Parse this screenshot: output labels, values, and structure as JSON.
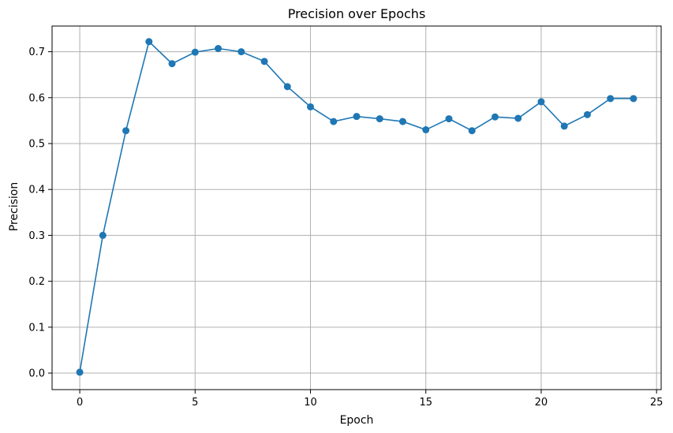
{
  "chart_data": {
    "type": "line",
    "title": "Precision over Epochs",
    "xlabel": "Epoch",
    "ylabel": "Precision",
    "xlim": [
      -1.2,
      25.2
    ],
    "ylim": [
      -0.036,
      0.756
    ],
    "xticks": [
      0,
      5,
      10,
      15,
      20,
      25
    ],
    "yticks": [
      0.0,
      0.1,
      0.2,
      0.3,
      0.4,
      0.5,
      0.6,
      0.7
    ],
    "ytick_labels": [
      "0.0",
      "0.1",
      "0.2",
      "0.3",
      "0.4",
      "0.5",
      "0.6",
      "0.7"
    ],
    "grid": true,
    "color": "#1f77b4",
    "grid_color": "#b0b0b0",
    "series": [
      {
        "x": [
          0,
          1,
          2,
          3,
          4,
          5,
          6,
          7,
          8,
          9,
          10,
          11,
          12,
          13,
          14,
          15,
          16,
          17,
          18,
          19,
          20,
          21,
          22,
          23,
          24
        ],
        "values": [
          0.002,
          0.3,
          0.528,
          0.722,
          0.674,
          0.699,
          0.707,
          0.7,
          0.679,
          0.624,
          0.58,
          0.548,
          0.559,
          0.554,
          0.548,
          0.53,
          0.554,
          0.528,
          0.558,
          0.555,
          0.591,
          0.538,
          0.563,
          0.598,
          0.598
        ]
      }
    ]
  }
}
